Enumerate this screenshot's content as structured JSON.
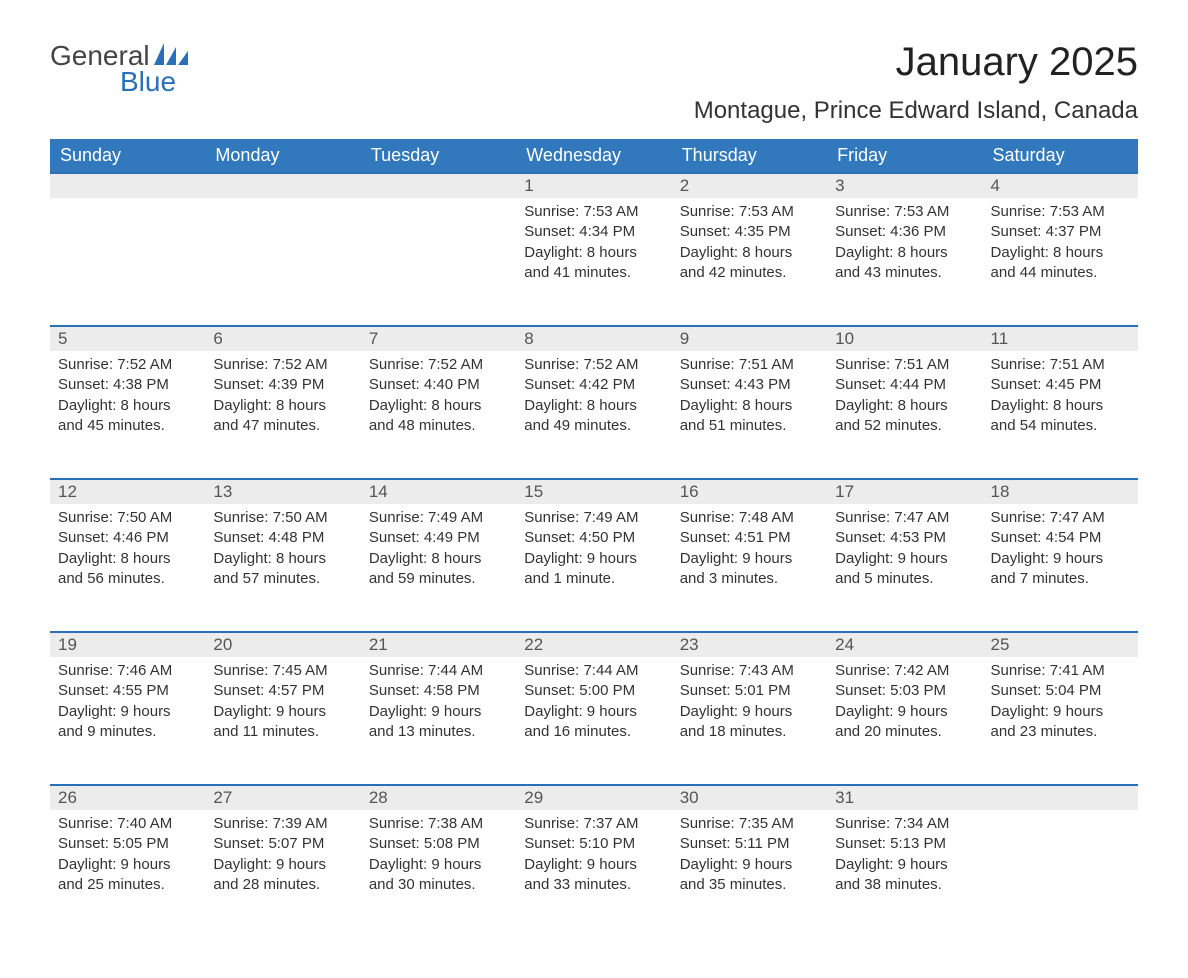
{
  "logo": {
    "text1": "General",
    "text2": "Blue"
  },
  "title": "January 2025",
  "location": "Montague, Prince Edward Island, Canada",
  "colors": {
    "header_bg": "#3178bc",
    "header_text": "#ffffff",
    "daynum_bg": "#ececec",
    "rule": "#2a70b8",
    "logo_blue": "#2a70b8",
    "body_text": "#333333",
    "page_bg": "#ffffff"
  },
  "columns": [
    "Sunday",
    "Monday",
    "Tuesday",
    "Wednesday",
    "Thursday",
    "Friday",
    "Saturday"
  ],
  "weeks": [
    {
      "days": [
        null,
        null,
        null,
        {
          "n": "1",
          "sunrise": "Sunrise: 7:53 AM",
          "sunset": "Sunset: 4:34 PM",
          "daylight": "Daylight: 8 hours and 41 minutes."
        },
        {
          "n": "2",
          "sunrise": "Sunrise: 7:53 AM",
          "sunset": "Sunset: 4:35 PM",
          "daylight": "Daylight: 8 hours and 42 minutes."
        },
        {
          "n": "3",
          "sunrise": "Sunrise: 7:53 AM",
          "sunset": "Sunset: 4:36 PM",
          "daylight": "Daylight: 8 hours and 43 minutes."
        },
        {
          "n": "4",
          "sunrise": "Sunrise: 7:53 AM",
          "sunset": "Sunset: 4:37 PM",
          "daylight": "Daylight: 8 hours and 44 minutes."
        }
      ]
    },
    {
      "days": [
        {
          "n": "5",
          "sunrise": "Sunrise: 7:52 AM",
          "sunset": "Sunset: 4:38 PM",
          "daylight": "Daylight: 8 hours and 45 minutes."
        },
        {
          "n": "6",
          "sunrise": "Sunrise: 7:52 AM",
          "sunset": "Sunset: 4:39 PM",
          "daylight": "Daylight: 8 hours and 47 minutes."
        },
        {
          "n": "7",
          "sunrise": "Sunrise: 7:52 AM",
          "sunset": "Sunset: 4:40 PM",
          "daylight": "Daylight: 8 hours and 48 minutes."
        },
        {
          "n": "8",
          "sunrise": "Sunrise: 7:52 AM",
          "sunset": "Sunset: 4:42 PM",
          "daylight": "Daylight: 8 hours and 49 minutes."
        },
        {
          "n": "9",
          "sunrise": "Sunrise: 7:51 AM",
          "sunset": "Sunset: 4:43 PM",
          "daylight": "Daylight: 8 hours and 51 minutes."
        },
        {
          "n": "10",
          "sunrise": "Sunrise: 7:51 AM",
          "sunset": "Sunset: 4:44 PM",
          "daylight": "Daylight: 8 hours and 52 minutes."
        },
        {
          "n": "11",
          "sunrise": "Sunrise: 7:51 AM",
          "sunset": "Sunset: 4:45 PM",
          "daylight": "Daylight: 8 hours and 54 minutes."
        }
      ]
    },
    {
      "days": [
        {
          "n": "12",
          "sunrise": "Sunrise: 7:50 AM",
          "sunset": "Sunset: 4:46 PM",
          "daylight": "Daylight: 8 hours and 56 minutes."
        },
        {
          "n": "13",
          "sunrise": "Sunrise: 7:50 AM",
          "sunset": "Sunset: 4:48 PM",
          "daylight": "Daylight: 8 hours and 57 minutes."
        },
        {
          "n": "14",
          "sunrise": "Sunrise: 7:49 AM",
          "sunset": "Sunset: 4:49 PM",
          "daylight": "Daylight: 8 hours and 59 minutes."
        },
        {
          "n": "15",
          "sunrise": "Sunrise: 7:49 AM",
          "sunset": "Sunset: 4:50 PM",
          "daylight": "Daylight: 9 hours and 1 minute."
        },
        {
          "n": "16",
          "sunrise": "Sunrise: 7:48 AM",
          "sunset": "Sunset: 4:51 PM",
          "daylight": "Daylight: 9 hours and 3 minutes."
        },
        {
          "n": "17",
          "sunrise": "Sunrise: 7:47 AM",
          "sunset": "Sunset: 4:53 PM",
          "daylight": "Daylight: 9 hours and 5 minutes."
        },
        {
          "n": "18",
          "sunrise": "Sunrise: 7:47 AM",
          "sunset": "Sunset: 4:54 PM",
          "daylight": "Daylight: 9 hours and 7 minutes."
        }
      ]
    },
    {
      "days": [
        {
          "n": "19",
          "sunrise": "Sunrise: 7:46 AM",
          "sunset": "Sunset: 4:55 PM",
          "daylight": "Daylight: 9 hours and 9 minutes."
        },
        {
          "n": "20",
          "sunrise": "Sunrise: 7:45 AM",
          "sunset": "Sunset: 4:57 PM",
          "daylight": "Daylight: 9 hours and 11 minutes."
        },
        {
          "n": "21",
          "sunrise": "Sunrise: 7:44 AM",
          "sunset": "Sunset: 4:58 PM",
          "daylight": "Daylight: 9 hours and 13 minutes."
        },
        {
          "n": "22",
          "sunrise": "Sunrise: 7:44 AM",
          "sunset": "Sunset: 5:00 PM",
          "daylight": "Daylight: 9 hours and 16 minutes."
        },
        {
          "n": "23",
          "sunrise": "Sunrise: 7:43 AM",
          "sunset": "Sunset: 5:01 PM",
          "daylight": "Daylight: 9 hours and 18 minutes."
        },
        {
          "n": "24",
          "sunrise": "Sunrise: 7:42 AM",
          "sunset": "Sunset: 5:03 PM",
          "daylight": "Daylight: 9 hours and 20 minutes."
        },
        {
          "n": "25",
          "sunrise": "Sunrise: 7:41 AM",
          "sunset": "Sunset: 5:04 PM",
          "daylight": "Daylight: 9 hours and 23 minutes."
        }
      ]
    },
    {
      "days": [
        {
          "n": "26",
          "sunrise": "Sunrise: 7:40 AM",
          "sunset": "Sunset: 5:05 PM",
          "daylight": "Daylight: 9 hours and 25 minutes."
        },
        {
          "n": "27",
          "sunrise": "Sunrise: 7:39 AM",
          "sunset": "Sunset: 5:07 PM",
          "daylight": "Daylight: 9 hours and 28 minutes."
        },
        {
          "n": "28",
          "sunrise": "Sunrise: 7:38 AM",
          "sunset": "Sunset: 5:08 PM",
          "daylight": "Daylight: 9 hours and 30 minutes."
        },
        {
          "n": "29",
          "sunrise": "Sunrise: 7:37 AM",
          "sunset": "Sunset: 5:10 PM",
          "daylight": "Daylight: 9 hours and 33 minutes."
        },
        {
          "n": "30",
          "sunrise": "Sunrise: 7:35 AM",
          "sunset": "Sunset: 5:11 PM",
          "daylight": "Daylight: 9 hours and 35 minutes."
        },
        {
          "n": "31",
          "sunrise": "Sunrise: 7:34 AM",
          "sunset": "Sunset: 5:13 PM",
          "daylight": "Daylight: 9 hours and 38 minutes."
        },
        null
      ]
    }
  ]
}
